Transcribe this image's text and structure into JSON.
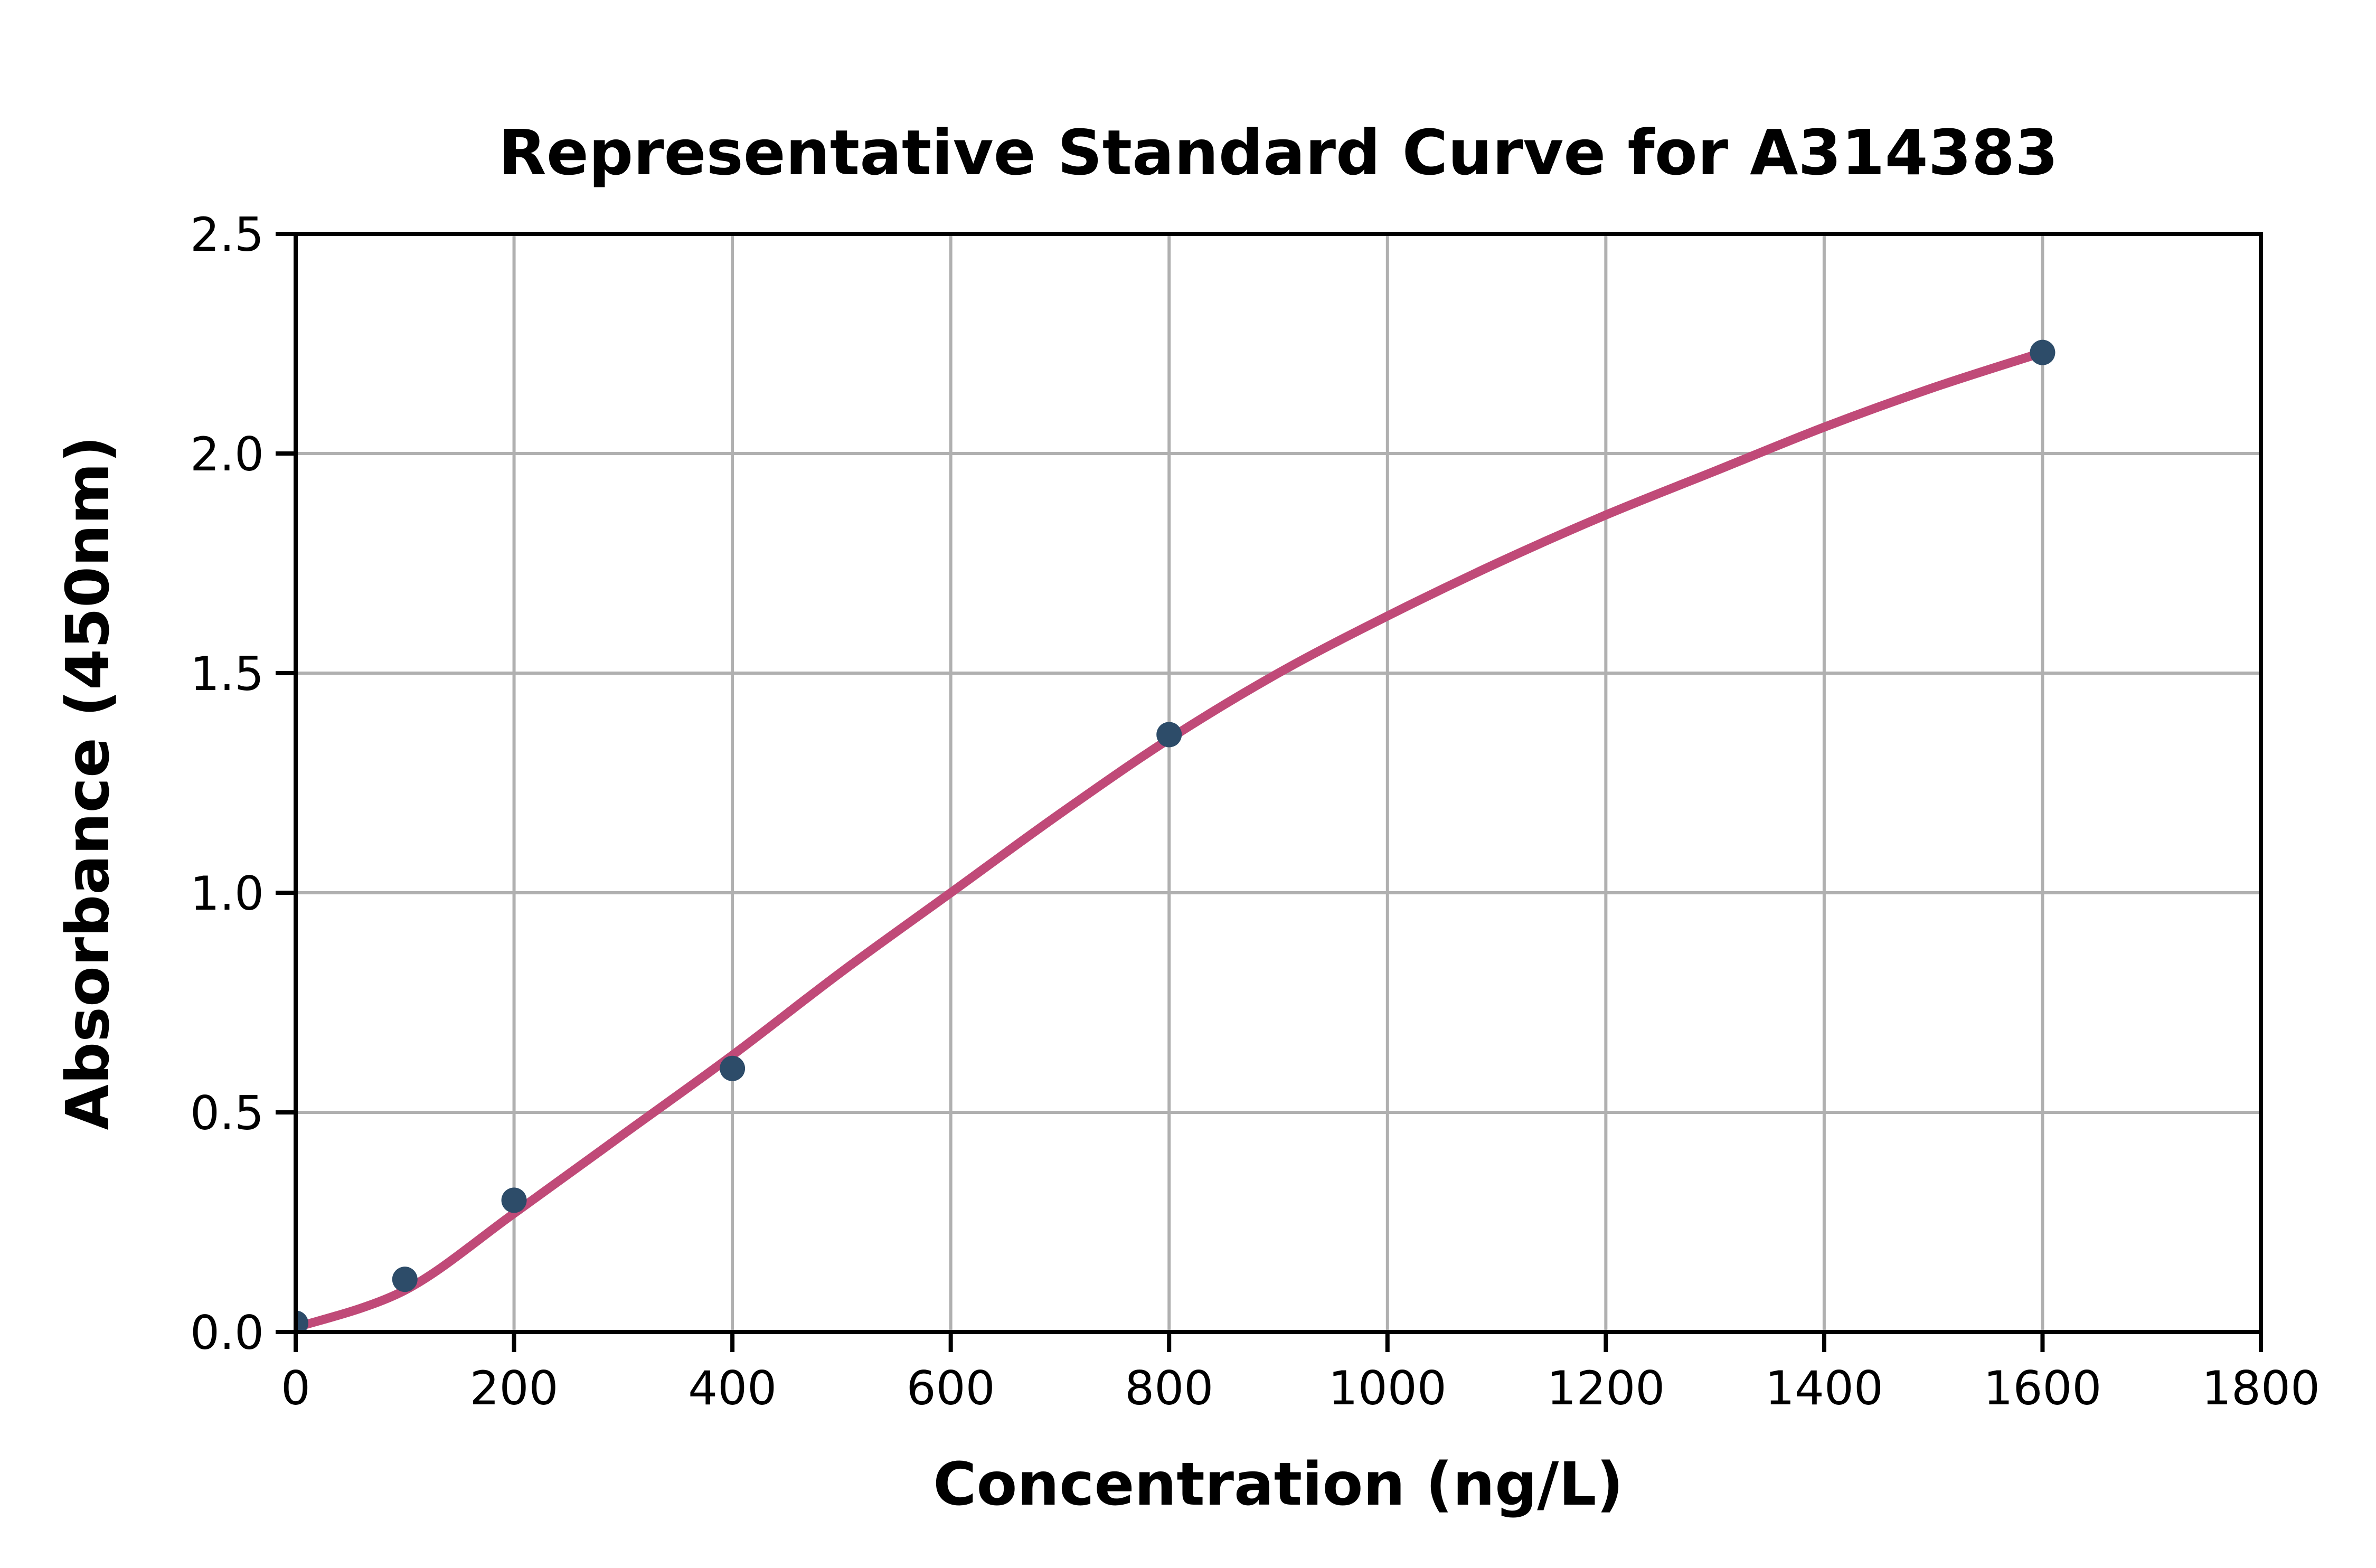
{
  "chart_data": {
    "type": "scatter",
    "title": "Representative Standard Curve for A314383",
    "xlabel": "Concentration (ng/L)",
    "ylabel": "Absorbance (450nm)",
    "xlim": [
      0,
      1800
    ],
    "ylim": [
      0,
      2.5
    ],
    "grid": true,
    "legend": "none",
    "x_ticks": [
      0,
      200,
      400,
      600,
      800,
      1000,
      1200,
      1400,
      1600,
      1800
    ],
    "x_tick_labels": [
      "0",
      "200",
      "400",
      "600",
      "800",
      "1000",
      "1200",
      "1400",
      "1600",
      "1800"
    ],
    "y_ticks": [
      0.0,
      0.5,
      1.0,
      1.5,
      2.0,
      2.5
    ],
    "y_tick_labels": [
      "0.0",
      "0.5",
      "1.0",
      "1.5",
      "2.0",
      "2.5"
    ],
    "series": [
      {
        "name": "standard-points",
        "type": "scatter",
        "points": [
          {
            "x": 0,
            "y": 0.02
          },
          {
            "x": 100,
            "y": 0.12
          },
          {
            "x": 200,
            "y": 0.3
          },
          {
            "x": 400,
            "y": 0.6
          },
          {
            "x": 800,
            "y": 1.36
          },
          {
            "x": 1600,
            "y": 2.23
          }
        ]
      },
      {
        "name": "fit-curve",
        "type": "line",
        "points": [
          {
            "x": 0,
            "y": 0.01
          },
          {
            "x": 100,
            "y": 0.095
          },
          {
            "x": 200,
            "y": 0.27
          },
          {
            "x": 300,
            "y": 0.45
          },
          {
            "x": 400,
            "y": 0.63
          },
          {
            "x": 500,
            "y": 0.82
          },
          {
            "x": 600,
            "y": 1.0
          },
          {
            "x": 700,
            "y": 1.18
          },
          {
            "x": 800,
            "y": 1.35
          },
          {
            "x": 900,
            "y": 1.5
          },
          {
            "x": 1000,
            "y": 1.63
          },
          {
            "x": 1100,
            "y": 1.75
          },
          {
            "x": 1200,
            "y": 1.86
          },
          {
            "x": 1300,
            "y": 1.96
          },
          {
            "x": 1400,
            "y": 2.06
          },
          {
            "x": 1500,
            "y": 2.15
          },
          {
            "x": 1600,
            "y": 2.23
          }
        ]
      }
    ],
    "colors": {
      "curve": "#C04A78",
      "point": "#2D4C69",
      "grid": "#B0B0B0",
      "frame": "#000000",
      "text": "#000000",
      "background": "#FFFFFF"
    }
  }
}
